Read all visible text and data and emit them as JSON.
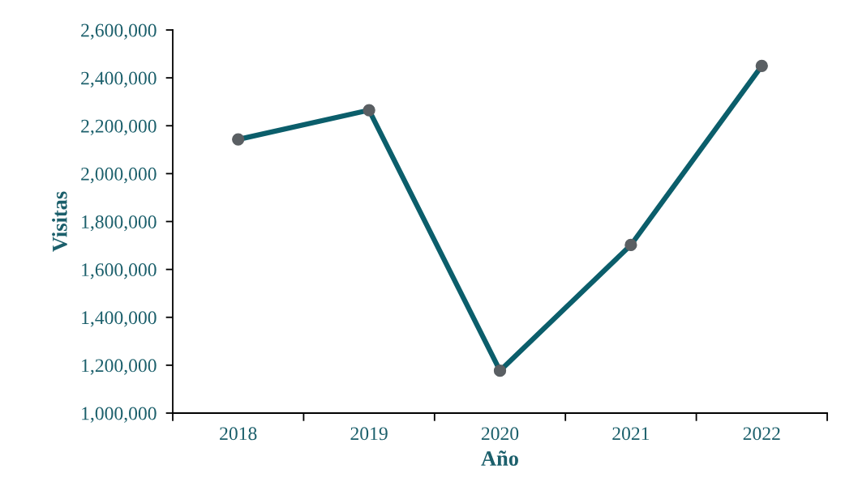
{
  "chart_data": {
    "type": "line",
    "xlabel": "Año",
    "ylabel": "Visitas",
    "categories": [
      "2018",
      "2019",
      "2020",
      "2021",
      "2022"
    ],
    "series": [
      {
        "color": "#0b5e6b",
        "values": [
          2143000,
          2265000,
          1177000,
          1702000,
          2450000
        ]
      }
    ],
    "marker": "circle",
    "line_style": "solid",
    "grid": false,
    "ylim": [
      1000000,
      2600000
    ],
    "yticks": [
      {
        "value": 1000000,
        "label": "1,000,000"
      },
      {
        "value": 1200000,
        "label": "1,200,000"
      },
      {
        "value": 1400000,
        "label": "1,400,000"
      },
      {
        "value": 1600000,
        "label": "1,600,000"
      },
      {
        "value": 1800000,
        "label": "1,800,000"
      },
      {
        "value": 2000000,
        "label": "2,000,000"
      },
      {
        "value": 2200000,
        "label": "2,200,000"
      },
      {
        "value": 2400000,
        "label": "2,400,000"
      },
      {
        "value": 2600000,
        "label": "2,600,000"
      }
    ]
  }
}
